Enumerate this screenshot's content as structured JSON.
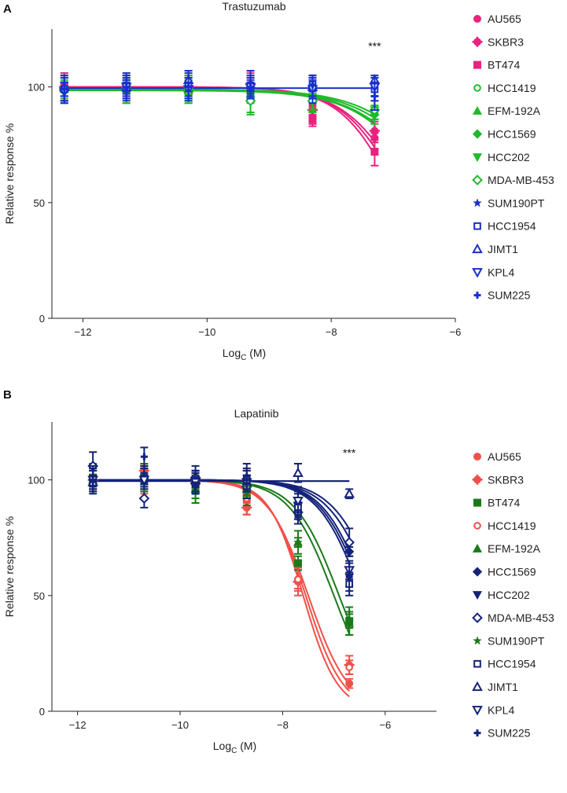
{
  "chart_data": [
    {
      "type": "scatter",
      "panel": "A",
      "title": "Trastuzumab",
      "xlabel": "Log",
      "xlabel_sub": "C",
      "xlabel_unit": "(M)",
      "ylabel": "Relative response %",
      "xlim": [
        -12.5,
        -6
      ],
      "ylim": [
        0,
        125
      ],
      "xticks": [
        -12,
        -10,
        -8,
        -6
      ],
      "yticks": [
        0,
        50,
        100
      ],
      "xtick_labels": [
        "−12",
        "−10",
        "−8",
        "−6"
      ],
      "ytick_labels": [
        "0",
        "50",
        "100"
      ],
      "x": [
        -12.3,
        -11.3,
        -10.3,
        -9.3,
        -8.3,
        -7.3
      ],
      "annotation": "***",
      "annotation_x": -7.3,
      "annotation_y": 116,
      "series": [
        {
          "name": "AU565",
          "color": "#e8227e",
          "marker": "circle",
          "values": [
            100,
            100,
            100,
            100,
            92,
            78
          ],
          "fit": {
            "top": 100,
            "bottom": 0,
            "ic50": -6.8,
            "hill": 0.9
          }
        },
        {
          "name": "SKBR3",
          "color": "#e8227e",
          "marker": "plus-circle",
          "values": [
            100,
            100,
            100,
            101,
            90,
            81
          ],
          "fit": {
            "top": 100,
            "bottom": 0,
            "ic50": -6.7,
            "hill": 0.85
          }
        },
        {
          "name": "BT474",
          "color": "#e8227e",
          "marker": "square",
          "values": [
            100,
            100,
            99,
            99,
            86,
            72
          ],
          "fit": {
            "top": 100,
            "bottom": 0,
            "ic50": -6.9,
            "hill": 0.95
          }
        },
        {
          "name": "HCC1419",
          "color": "#1fba2b",
          "marker": "circle-open",
          "values": [
            99,
            99,
            99,
            96,
            94,
            89
          ],
          "fit": {
            "top": 99,
            "bottom": 0,
            "ic50": -6.2,
            "hill": 0.7
          }
        },
        {
          "name": "EFM-192A",
          "color": "#1fba2b",
          "marker": "triangle-up",
          "values": [
            99,
            100,
            99,
            97,
            95,
            91
          ],
          "fit": {
            "top": 99,
            "bottom": 0,
            "ic50": -6.0,
            "hill": 0.7
          }
        },
        {
          "name": "HCC1569",
          "color": "#1fba2b",
          "marker": "diamond",
          "values": [
            98,
            98,
            97,
            94,
            94,
            88
          ],
          "fit": {
            "top": 98.5,
            "bottom": 0,
            "ic50": -6.3,
            "hill": 0.75
          }
        },
        {
          "name": "HCC202",
          "color": "#1fba2b",
          "marker": "triangle-down",
          "values": [
            99,
            99,
            98,
            97,
            95,
            90
          ],
          "fit": {
            "top": 99,
            "bottom": 0,
            "ic50": -6.1,
            "hill": 0.7
          }
        },
        {
          "name": "MDA-MB-453",
          "color": "#1fba2b",
          "marker": "diamond-open",
          "values": [
            99,
            99,
            98,
            94,
            94,
            90
          ],
          "fit": {
            "top": 99,
            "bottom": 0,
            "ic50": -6.2,
            "hill": 0.7
          }
        },
        {
          "name": "SUM190PT",
          "color": "#1a2fcc",
          "marker": "star",
          "values": [
            99,
            100,
            100,
            100,
            100,
            99
          ],
          "fit": null
        },
        {
          "name": "HCC1954",
          "color": "#1a2fcc",
          "marker": "square-open",
          "values": [
            99,
            100,
            101,
            100,
            101,
            99
          ],
          "fit": null
        },
        {
          "name": "JIMT1",
          "color": "#1a2fcc",
          "marker": "triangle-up-open",
          "values": [
            100,
            100,
            103,
            101,
            100,
            103
          ],
          "fit": null
        },
        {
          "name": "KPL4",
          "color": "#1a2fcc",
          "marker": "triangle-down-open",
          "values": [
            98,
            100,
            99,
            100,
            99,
            100
          ],
          "fit": null
        },
        {
          "name": "SUM225",
          "color": "#1a2fcc",
          "marker": "plus",
          "values": [
            99,
            100,
            100,
            100,
            101,
            96
          ],
          "fit": null
        }
      ]
    },
    {
      "type": "scatter",
      "panel": "B",
      "title": "Lapatinib",
      "xlabel": "Log",
      "xlabel_sub": "C",
      "xlabel_unit": "(M)",
      "ylabel": "Relative response %",
      "xlim": [
        -12.5,
        -5
      ],
      "ylim": [
        0,
        125
      ],
      "xticks": [
        -12,
        -10,
        -8,
        -6
      ],
      "yticks": [
        0,
        50,
        100
      ],
      "xtick_labels": [
        "−12",
        "−10",
        "−8",
        "−6"
      ],
      "ytick_labels": [
        "0",
        "50",
        "100"
      ],
      "x": [
        -11.7,
        -10.7,
        -9.7,
        -8.7,
        -7.7,
        -6.7
      ],
      "annotation": "***",
      "annotation_x": -6.7,
      "annotation_y": 110,
      "series": [
        {
          "name": "AU565",
          "color": "#f0504a",
          "marker": "circle",
          "values": [
            100,
            101,
            99,
            91,
            57,
            12
          ],
          "fit": {
            "top": 100,
            "bottom": 0,
            "ic50": -7.6,
            "hill": 1.3
          }
        },
        {
          "name": "SKBR3",
          "color": "#f0504a",
          "marker": "plus-circle",
          "values": [
            100,
            104,
            99,
            88,
            56,
            20
          ],
          "fit": {
            "top": 100,
            "bottom": 0,
            "ic50": -7.5,
            "hill": 1.1
          }
        },
        {
          "name": "BT474",
          "color": "#1a7a1a",
          "marker": "square",
          "values": [
            101,
            101,
            97,
            94,
            64,
            39
          ],
          "fit": {
            "top": 100,
            "bottom": 0,
            "ic50": -7.0,
            "hill": 1.0
          }
        },
        {
          "name": "HCC1419",
          "color": "#f0504a",
          "marker": "circle-open",
          "values": [
            99,
            100,
            100,
            92,
            57,
            19
          ],
          "fit": {
            "top": 100,
            "bottom": 0,
            "ic50": -7.55,
            "hill": 1.2
          }
        },
        {
          "name": "EFM-192A",
          "color": "#1a7a1a",
          "marker": "triangle-up",
          "values": [
            100,
            102,
            96,
            96,
            73,
            38
          ],
          "fit": {
            "top": 100,
            "bottom": 0,
            "ic50": -6.9,
            "hill": 1.0
          }
        },
        {
          "name": "HCC1569",
          "color": "#14237a",
          "marker": "diamond",
          "values": [
            100,
            100,
            98,
            98,
            90,
            69
          ],
          "fit": {
            "top": 100,
            "bottom": 0,
            "ic50": -6.2,
            "hill": 0.95
          }
        },
        {
          "name": "HCC202",
          "color": "#14237a",
          "marker": "triangle-down",
          "values": [
            100,
            100,
            99,
            99,
            89,
            58
          ],
          "fit": {
            "top": 100,
            "bottom": 0,
            "ic50": -6.4,
            "hill": 1.0
          }
        },
        {
          "name": "MDA-MB-453",
          "color": "#14237a",
          "marker": "diamond-open",
          "values": [
            106,
            92,
            101,
            97,
            86,
            73
          ],
          "fit": {
            "top": 100,
            "bottom": 0,
            "ic50": -6.1,
            "hill": 0.95
          }
        },
        {
          "name": "SUM190PT",
          "color": "#1a7a1a",
          "marker": "star",
          "values": [
            101,
            101,
            96,
            95,
            73,
            39
          ],
          "fit": null
        },
        {
          "name": "HCC1954",
          "color": "#14237a",
          "marker": "square-open",
          "values": [
            100,
            100,
            100,
            100,
            88,
            55
          ],
          "fit": {
            "top": 100,
            "bottom": 0,
            "ic50": -6.45,
            "hill": 1.0
          }
        },
        {
          "name": "JIMT1",
          "color": "#14237a",
          "marker": "triangle-up-open",
          "values": [
            99,
            101,
            100,
            101,
            103,
            94
          ],
          "fit": {
            "top": 99.5,
            "bottom": 99.5,
            "ic50": -6.0,
            "hill": 1.0
          }
        },
        {
          "name": "KPL4",
          "color": "#14237a",
          "marker": "triangle-down-open",
          "values": [
            100,
            100,
            99,
            99,
            91,
            61
          ],
          "fit": {
            "top": 100,
            "bottom": 0,
            "ic50": -6.35,
            "hill": 1.0
          }
        },
        {
          "name": "SUM225",
          "color": "#14237a",
          "marker": "plus",
          "values": [
            100,
            110,
            97,
            100,
            84,
            58
          ],
          "fit": null
        }
      ]
    }
  ]
}
